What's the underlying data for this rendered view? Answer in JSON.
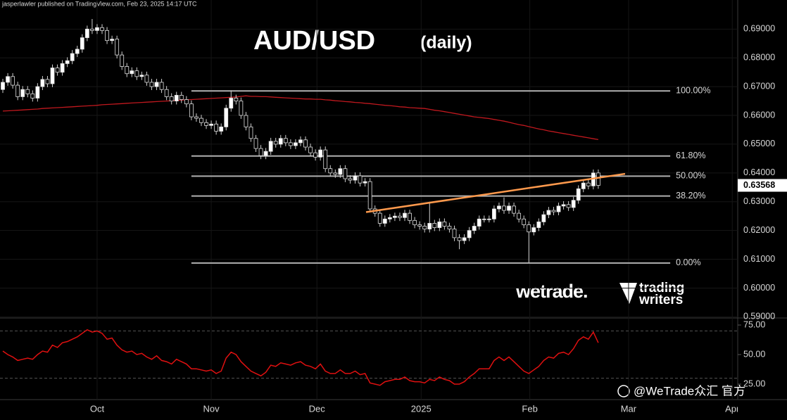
{
  "header": "jasperlawler published on TradingView.com, Feb 23, 2025 14:17 UTC",
  "logos": {
    "wetrade": "wetrade.",
    "trading": "trading",
    "writers": "writers"
  },
  "watermark": "@WeTrade众汇 官方",
  "chart_data": {
    "type": "candlestick",
    "title": "AUD/USD",
    "subtitle": "(daily)",
    "up_color": "#ffffff",
    "down_color": "#000000",
    "open": [
      0.669,
      0.6715,
      0.6735,
      0.6705,
      0.6665,
      0.669,
      0.6675,
      0.666,
      0.67,
      0.6725,
      0.671,
      0.6765,
      0.675,
      0.678,
      0.679,
      0.6815,
      0.683,
      0.687,
      0.69,
      0.6895,
      0.6905,
      0.6895,
      0.686,
      0.6865,
      0.681,
      0.677,
      0.6745,
      0.6755,
      0.6735,
      0.674,
      0.6715,
      0.67,
      0.6715,
      0.669,
      0.6665,
      0.665,
      0.667,
      0.6655,
      0.664,
      0.6595,
      0.659,
      0.6575,
      0.6565,
      0.657,
      0.6545,
      0.656,
      0.6625,
      0.666,
      0.665,
      0.66,
      0.656,
      0.652,
      0.6485,
      0.646,
      0.6475,
      0.651,
      0.65,
      0.652,
      0.6505,
      0.6495,
      0.6505,
      0.6515,
      0.649,
      0.647,
      0.6455,
      0.648,
      0.6415,
      0.64,
      0.6395,
      0.6415,
      0.638,
      0.6375,
      0.639,
      0.6365,
      0.637,
      0.6275,
      0.626,
      0.6225,
      0.624,
      0.6245,
      0.625,
      0.6245,
      0.626,
      0.6235,
      0.622,
      0.6215,
      0.6205,
      0.6225,
      0.621,
      0.623,
      0.6215,
      0.6205,
      0.6175,
      0.6165,
      0.6175,
      0.62,
      0.6215,
      0.624,
      0.624,
      0.624,
      0.6275,
      0.6285,
      0.627,
      0.6285,
      0.626,
      0.624,
      0.622,
      0.6195,
      0.621,
      0.623,
      0.6255,
      0.627,
      0.6265,
      0.6285,
      0.629,
      0.628,
      0.6305,
      0.6345,
      0.6365,
      0.6355,
      0.64
    ],
    "high": [
      0.6727,
      0.6747,
      0.6747,
      0.6717,
      0.6702,
      0.6702,
      0.6687,
      0.6712,
      0.6737,
      0.6737,
      0.6777,
      0.6777,
      0.6792,
      0.6802,
      0.6827,
      0.6842,
      0.6882,
      0.6912,
      0.6935,
      0.6917,
      0.6917,
      0.6907,
      0.6877,
      0.6877,
      0.6822,
      0.6782,
      0.6767,
      0.6767,
      0.6752,
      0.6752,
      0.6727,
      0.6727,
      0.6727,
      0.6702,
      0.6677,
      0.6682,
      0.6682,
      0.6667,
      0.6652,
      0.6607,
      0.6602,
      0.6587,
      0.6582,
      0.6582,
      0.6572,
      0.6637,
      0.6687,
      0.6672,
      0.6662,
      0.6612,
      0.6572,
      0.6532,
      0.6497,
      0.6487,
      0.6522,
      0.6522,
      0.6532,
      0.6532,
      0.6517,
      0.6517,
      0.6527,
      0.6527,
      0.6502,
      0.6482,
      0.6492,
      0.6492,
      0.6427,
      0.6412,
      0.6427,
      0.6427,
      0.6392,
      0.6402,
      0.6402,
      0.6382,
      0.6382,
      0.6287,
      0.6272,
      0.6252,
      0.6257,
      0.6262,
      0.6262,
      0.6272,
      0.6272,
      0.6247,
      0.6232,
      0.6227,
      0.63,
      0.6237,
      0.6242,
      0.6242,
      0.6227,
      0.6217,
      0.6187,
      0.6187,
      0.6212,
      0.6227,
      0.6252,
      0.6252,
      0.6252,
      0.6287,
      0.6297,
      0.6315,
      0.6297,
      0.6297,
      0.6272,
      0.6252,
      0.6232,
      0.6222,
      0.6242,
      0.6267,
      0.6282,
      0.6282,
      0.6297,
      0.6302,
      0.6302,
      0.6317,
      0.6357,
      0.6377,
      0.6377,
      0.6412,
      0.6412
    ],
    "low": [
      0.6678,
      0.6703,
      0.6693,
      0.6653,
      0.6653,
      0.6663,
      0.6648,
      0.6648,
      0.6688,
      0.6698,
      0.6698,
      0.6738,
      0.6738,
      0.6768,
      0.6778,
      0.6803,
      0.6818,
      0.6858,
      0.6883,
      0.6883,
      0.6883,
      0.6848,
      0.6848,
      0.6798,
      0.6758,
      0.6733,
      0.6733,
      0.6723,
      0.6723,
      0.6703,
      0.6688,
      0.6688,
      0.6678,
      0.6653,
      0.6638,
      0.6638,
      0.6643,
      0.6628,
      0.6583,
      0.6578,
      0.6563,
      0.6553,
      0.6553,
      0.6533,
      0.6533,
      0.6548,
      0.6613,
      0.6638,
      0.6588,
      0.6548,
      0.6508,
      0.6473,
      0.6448,
      0.6448,
      0.6463,
      0.6488,
      0.6488,
      0.6493,
      0.6483,
      0.6483,
      0.6493,
      0.6478,
      0.6458,
      0.6443,
      0.6443,
      0.6403,
      0.6388,
      0.6383,
      0.6383,
      0.6368,
      0.6363,
      0.6363,
      0.6353,
      0.6353,
      0.6263,
      0.6248,
      0.6213,
      0.6213,
      0.6228,
      0.6233,
      0.6233,
      0.6233,
      0.6223,
      0.6208,
      0.6203,
      0.6193,
      0.6193,
      0.6198,
      0.6198,
      0.6203,
      0.6193,
      0.6163,
      0.6135,
      0.6153,
      0.6163,
      0.6188,
      0.6203,
      0.6228,
      0.6228,
      0.6228,
      0.6263,
      0.6258,
      0.6258,
      0.6248,
      0.6228,
      0.6208,
      0.6087,
      0.6183,
      0.6198,
      0.6218,
      0.6243,
      0.6253,
      0.6253,
      0.6273,
      0.6268,
      0.6268,
      0.6293,
      0.6333,
      0.6343,
      0.6343,
      0.6345
    ],
    "close": [
      0.6715,
      0.6735,
      0.6705,
      0.6665,
      0.669,
      0.6675,
      0.666,
      0.67,
      0.6725,
      0.671,
      0.6765,
      0.675,
      0.678,
      0.679,
      0.6815,
      0.683,
      0.687,
      0.69,
      0.6895,
      0.6905,
      0.6895,
      0.686,
      0.6865,
      0.681,
      0.677,
      0.6745,
      0.6755,
      0.6735,
      0.674,
      0.6715,
      0.67,
      0.6715,
      0.669,
      0.6665,
      0.665,
      0.667,
      0.6655,
      0.664,
      0.6595,
      0.659,
      0.6575,
      0.6565,
      0.657,
      0.6545,
      0.656,
      0.6625,
      0.666,
      0.665,
      0.66,
      0.656,
      0.652,
      0.6485,
      0.646,
      0.6475,
      0.651,
      0.65,
      0.652,
      0.6505,
      0.6495,
      0.6505,
      0.6515,
      0.649,
      0.647,
      0.6455,
      0.648,
      0.6415,
      0.64,
      0.6395,
      0.6415,
      0.638,
      0.6375,
      0.639,
      0.6365,
      0.637,
      0.6275,
      0.626,
      0.6225,
      0.624,
      0.6245,
      0.625,
      0.6245,
      0.626,
      0.6235,
      0.622,
      0.6215,
      0.6205,
      0.6225,
      0.621,
      0.623,
      0.6215,
      0.6205,
      0.6175,
      0.6165,
      0.6175,
      0.62,
      0.6215,
      0.624,
      0.624,
      0.624,
      0.6275,
      0.6285,
      0.627,
      0.6285,
      0.626,
      0.624,
      0.622,
      0.6195,
      0.621,
      0.623,
      0.6255,
      0.627,
      0.6265,
      0.6285,
      0.629,
      0.628,
      0.6305,
      0.6345,
      0.6365,
      0.6355,
      0.64,
      0.63568
    ],
    "moving_average": {
      "color": "#c0181e",
      "values": [
        0.6615,
        0.6616,
        0.6617,
        0.6618,
        0.6619,
        0.662,
        0.6621,
        0.6622,
        0.6624,
        0.6625,
        0.6626,
        0.6627,
        0.6628,
        0.6629,
        0.663,
        0.6631,
        0.6632,
        0.6633,
        0.6634,
        0.6635,
        0.6637,
        0.6638,
        0.6639,
        0.664,
        0.6641,
        0.6642,
        0.6643,
        0.6644,
        0.6645,
        0.6646,
        0.6647,
        0.6648,
        0.6649,
        0.665,
        0.6651,
        0.6652,
        0.6653,
        0.6654,
        0.6655,
        0.6656,
        0.6657,
        0.6658,
        0.6659,
        0.666,
        0.6661,
        0.6662,
        0.6663,
        0.6664,
        0.6666,
        0.6668,
        0.6666,
        0.6666,
        0.6665,
        0.6665,
        0.6664,
        0.6663,
        0.6662,
        0.6661,
        0.666,
        0.6659,
        0.6658,
        0.6657,
        0.6657,
        0.6656,
        0.6656,
        0.6654,
        0.6653,
        0.6651,
        0.665,
        0.6648,
        0.6647,
        0.6645,
        0.6644,
        0.6642,
        0.6641,
        0.6639,
        0.6637,
        0.6635,
        0.6634,
        0.6632,
        0.663,
        0.6629,
        0.6627,
        0.6626,
        0.6625,
        0.6624,
        0.6621,
        0.6618,
        0.6616,
        0.6613,
        0.661,
        0.6607,
        0.6604,
        0.6601,
        0.6598,
        0.6595,
        0.6593,
        0.6591,
        0.6589,
        0.6586,
        0.6583,
        0.658,
        0.6576,
        0.6572,
        0.6568,
        0.6565,
        0.6561,
        0.6557,
        0.6553,
        0.655,
        0.6546,
        0.6543,
        0.654,
        0.6537,
        0.6534,
        0.6531,
        0.6528,
        0.6525,
        0.6522,
        0.6519,
        0.6516
      ]
    },
    "fib_levels": [
      {
        "value": 0.6685,
        "label": "100.00%"
      },
      {
        "value": 0.6459,
        "label": "61.80%"
      },
      {
        "value": 0.6389,
        "label": "50.00%"
      },
      {
        "value": 0.632,
        "label": "38.20%"
      },
      {
        "value": 0.6087,
        "label": "0.00%"
      }
    ],
    "fib_range": [
      38,
      134.5
    ],
    "trendline": {
      "color": "#ff9a4d",
      "x": [
        73.2,
        125.4
      ],
      "y": [
        0.6264,
        0.6397
      ]
    },
    "xlim": [
      -0.57,
      148.1
    ],
    "xticks": [
      {
        "value": 19,
        "label": "Oct"
      },
      {
        "value": 42,
        "label": "Nov"
      },
      {
        "value": 63.3,
        "label": "Dec"
      },
      {
        "value": 84.3,
        "label": "2025"
      },
      {
        "value": 106.2,
        "label": "Feb"
      },
      {
        "value": 126.1,
        "label": "Mar"
      },
      {
        "value": 147,
        "label": "Apr"
      }
    ],
    "ylim": [
      0.5896,
      0.7001
    ],
    "yticks": [
      {
        "value": 0.59,
        "label": "0.59000"
      },
      {
        "value": 0.6,
        "label": "0.60000"
      },
      {
        "value": 0.61,
        "label": "0.61000"
      },
      {
        "value": 0.62,
        "label": "0.62000"
      },
      {
        "value": 0.63,
        "label": "0.63000"
      },
      {
        "value": 0.64,
        "label": "0.64000"
      },
      {
        "value": 0.65,
        "label": "0.65000"
      },
      {
        "value": 0.66,
        "label": "0.66000"
      },
      {
        "value": 0.67,
        "label": "0.67000"
      },
      {
        "value": 0.68,
        "label": "0.68000"
      },
      {
        "value": 0.69,
        "label": "0.69000"
      }
    ],
    "grid": true,
    "indicator": {
      "color": "#e01010",
      "values": [
        53,
        50,
        48,
        45,
        46,
        47,
        46,
        50,
        53,
        52,
        58,
        56,
        60,
        61,
        63,
        65,
        68,
        71,
        69,
        70,
        68,
        63,
        64,
        58,
        54,
        52,
        53,
        50,
        51,
        48,
        46,
        49,
        45,
        44,
        42,
        46,
        44,
        42,
        38,
        38,
        37,
        36,
        37,
        34,
        36,
        47,
        52,
        50,
        44,
        40,
        36,
        34,
        32,
        35,
        41,
        40,
        43,
        42,
        41,
        43,
        44,
        41,
        40,
        38,
        42,
        36,
        34,
        34,
        37,
        34,
        34,
        36,
        33,
        34,
        26,
        25,
        24,
        27,
        28,
        29,
        29,
        31,
        28,
        27,
        27,
        26,
        29,
        28,
        31,
        29,
        28,
        25,
        25,
        27,
        31,
        34,
        38,
        38,
        38,
        45,
        48,
        45,
        48,
        44,
        40,
        36,
        34,
        37,
        40,
        45,
        48,
        47,
        51,
        52,
        50,
        55,
        62,
        65,
        63,
        69,
        60
      ],
      "ylim": [
        11.9,
        80.95
      ],
      "yticks": [
        {
          "value": 75,
          "label": "75.00"
        },
        {
          "value": 50,
          "label": "50.00"
        },
        {
          "value": 25,
          "label": "25.00"
        }
      ],
      "bands": [
        70,
        30
      ]
    }
  }
}
